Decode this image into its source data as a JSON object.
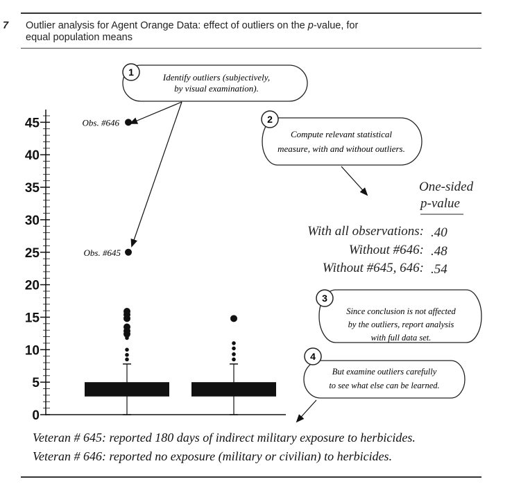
{
  "caption": {
    "number": "7",
    "text_line1_pre": "Outlier analysis for Agent Orange Data: effect of outliers on the ",
    "text_line1_em": "p",
    "text_line1_post": "-value, for",
    "text_line2": "equal population means"
  },
  "callouts": [
    {
      "step": "1",
      "lines": [
        "Identify outliers (subjectively,",
        "by visual examination)."
      ]
    },
    {
      "step": "2",
      "lines": [
        "Compute relevant statistical",
        "measure, with and without outliers."
      ]
    },
    {
      "step": "3",
      "lines": [
        "Since conclusion is not affected",
        "by the outliers, report analysis",
        "with full data set."
      ]
    },
    {
      "step": "4",
      "lines": [
        "But examine outliers carefully",
        "to see what else can be learned."
      ]
    }
  ],
  "pvalue_table": {
    "header_line1": "One-sided",
    "header_line2": "p-value",
    "rows": [
      {
        "label": "With all observations:",
        "value": ".40"
      },
      {
        "label": "Without #646:",
        "value": ".48"
      },
      {
        "label": "Without #645, 646:",
        "value": ".54"
      }
    ]
  },
  "chart_data": {
    "type": "boxplot",
    "ylim": [
      0,
      47
    ],
    "yticks": [
      0,
      5,
      10,
      15,
      20,
      25,
      30,
      35,
      40,
      45
    ],
    "ytick_labels": [
      "0",
      "5",
      "10",
      "15",
      "20",
      "25",
      "30",
      "35",
      "40",
      "45"
    ],
    "groups": [
      {
        "box_low": 2.8,
        "box_high": 5.0,
        "whisker_low": 0,
        "whisker_high": 7.8,
        "outliers": [
          8.5,
          9.2,
          10.0,
          11.8,
          12.4,
          12.9,
          13.5,
          14.8,
          15.4,
          15.9,
          25.0,
          45.0
        ]
      },
      {
        "box_low": 2.8,
        "box_high": 5.0,
        "whisker_low": 0,
        "whisker_high": 7.8,
        "outliers": [
          8.5,
          9.3,
          10.2,
          11.0,
          14.8
        ]
      }
    ],
    "annotations": [
      {
        "text": "Obs. #646",
        "y": 45
      },
      {
        "text": "Obs. #645",
        "y": 25
      }
    ]
  },
  "footnotes": [
    "Veteran # 645: reported 180 days of indirect military exposure to herbicides.",
    "Veteran # 646: reported no exposure (military or civilian) to herbicides."
  ]
}
